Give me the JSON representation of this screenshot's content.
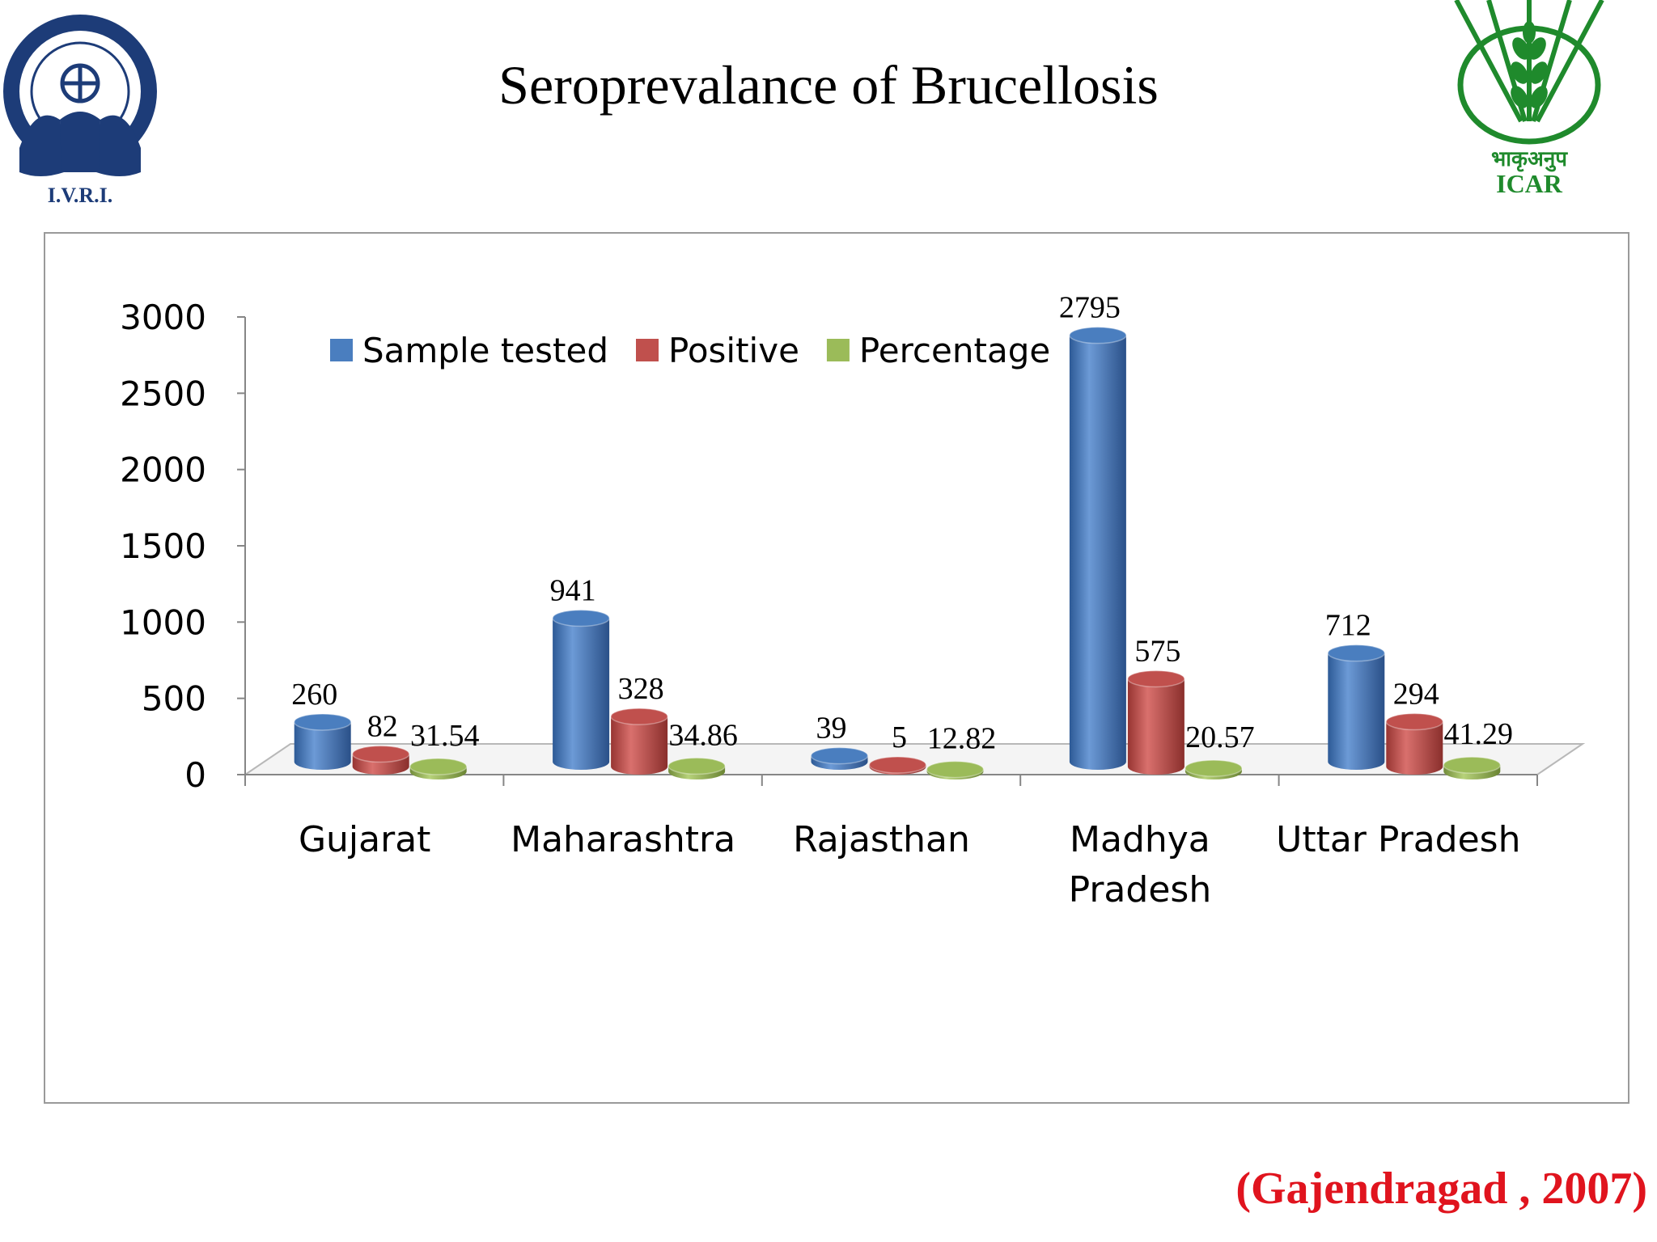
{
  "slide": {
    "title": "Seroprevalance of Brucellosis",
    "citation": "(Gajendragad , 2007)"
  },
  "logos": {
    "left": {
      "name": "IVRI emblem",
      "text": "I.V.R.I.",
      "color": "#1d3c78"
    },
    "right": {
      "name": "ICAR emblem",
      "text": "ICAR",
      "hindi_text": "भाकृअनुप",
      "color": "#1f8a2c"
    }
  },
  "chart_data": {
    "type": "bar",
    "style": "3d-cylinder",
    "title": "",
    "xlabel": "",
    "ylabel": "",
    "ylim": [
      0,
      3000
    ],
    "yticks": [
      "0",
      "500",
      "1000",
      "1500",
      "2000",
      "2500",
      "3000"
    ],
    "categories": [
      "Gujarat",
      "Maharashtra",
      "Rajasthan",
      "Madhya Pradesh",
      "Uttar Pradesh"
    ],
    "category_lines": [
      [
        "Gujarat"
      ],
      [
        "Maharashtra"
      ],
      [
        "Rajasthan"
      ],
      [
        "Madhya",
        "Pradesh"
      ],
      [
        "Uttar Pradesh"
      ]
    ],
    "legend_position": "top-left",
    "series": [
      {
        "name": "Sample tested",
        "color": "#4a7ebf",
        "values": [
          260,
          941,
          39,
          2795,
          712
        ],
        "labels": [
          "260",
          "941",
          "39",
          "2795",
          "712"
        ]
      },
      {
        "name": "Positive",
        "color": "#c0504d",
        "values": [
          82,
          328,
          5,
          575,
          294
        ],
        "labels": [
          "82",
          "328",
          "5",
          "575",
          "294"
        ]
      },
      {
        "name": "Percentage",
        "color": "#9bbb59",
        "values": [
          31.54,
          34.86,
          12.82,
          20.57,
          41.29
        ],
        "labels": [
          "31.54",
          "34.86",
          "12.82",
          "20.57",
          "41.29"
        ]
      }
    ]
  }
}
